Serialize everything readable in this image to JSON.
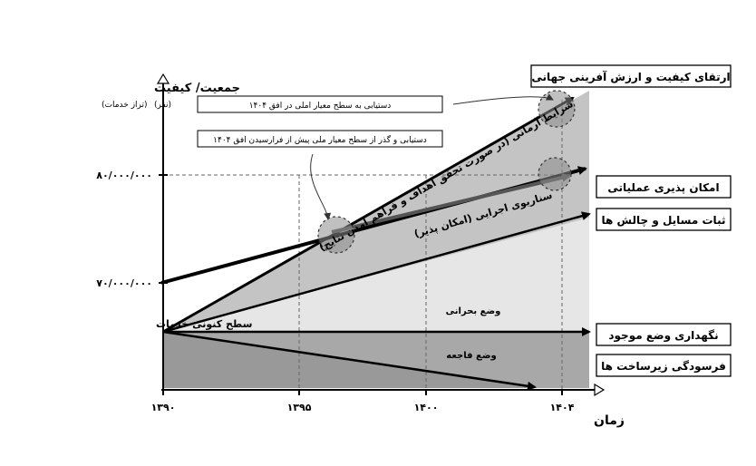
{
  "axis": {
    "y_title": "جمعیت/ کیفیت",
    "y_unit_left": "(نفر)",
    "y_unit_right": "(تراز خدمات)",
    "y_tick_high": "۸۰/۰۰۰/۰۰۰",
    "y_tick_low": "۷۰/۰۰۰/۰۰۰",
    "y_base": "سطح کنونی خدمات",
    "x_title": "زمان",
    "x_ticks": [
      "۱۳۹۰",
      "۱۳۹۵",
      "۱۴۰۰",
      "۱۴۰۴"
    ]
  },
  "outcomes": {
    "world_quality": "ارتقای کیفیت و ارزش آفرینی جهانی",
    "feasibility": "امکان پذیری عملیاتی",
    "stability": "ثبات مسایل و چالش ها",
    "status_quo": "نگهداری وضع موجود",
    "decay": "فرسودگی زیرساخت ها"
  },
  "notes": {
    "national_standard": "دستیابی به سطح معیار املی در افق ۱۴۰۴",
    "beyond_standard": "دستیابی و گذر از سطح معیار ملی پیش از فرارسیدن افق ۱۴۰۴"
  },
  "scenarios": {
    "ideal": "شرایط آرمانی (در صورت تحقق اهداف و فراهم آمدن نتایج)",
    "executive": "سناریوی اجرایی (امکان پذیر)",
    "crisis": "وضع بحرانی",
    "catastrophe": "وضع فاجعه"
  }
}
